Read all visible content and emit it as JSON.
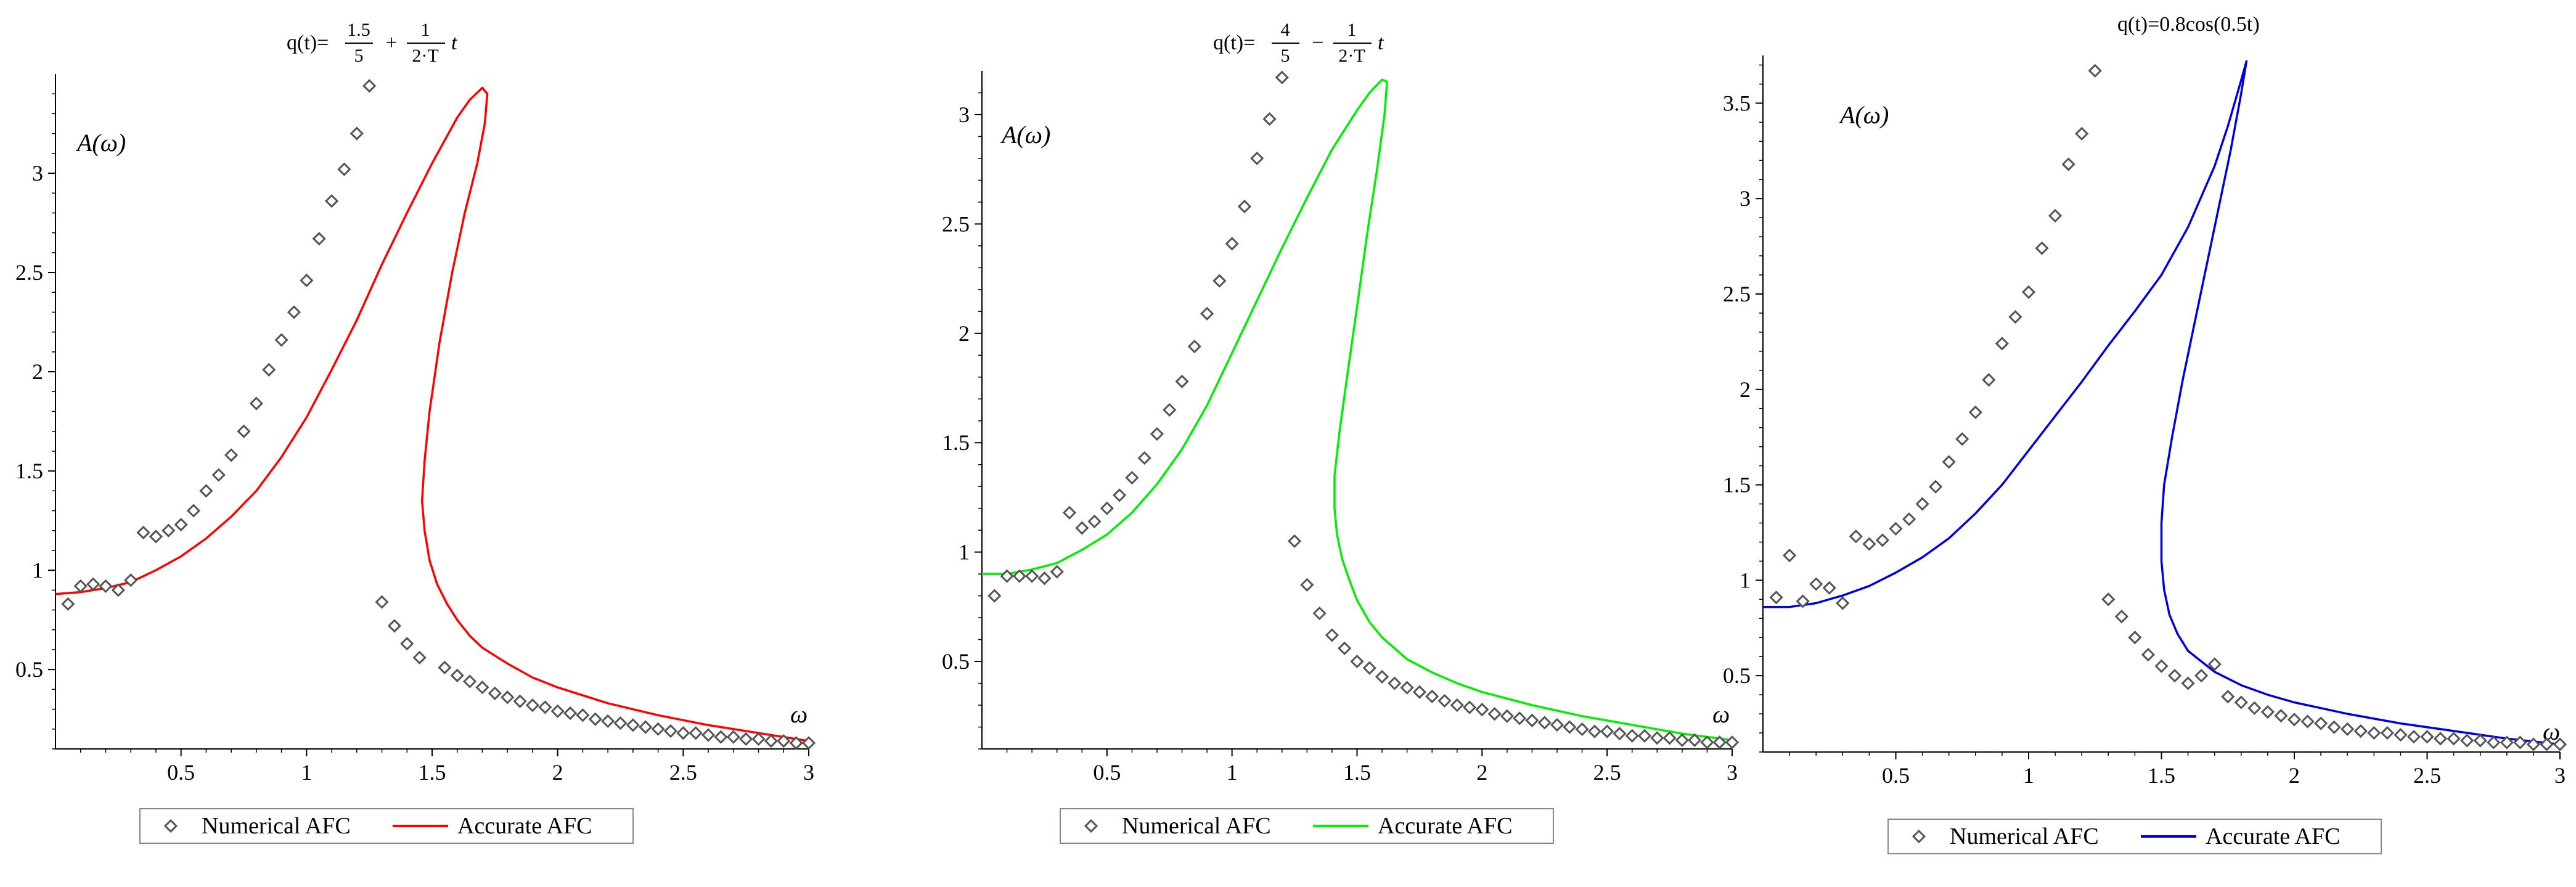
{
  "chart_data": [
    {
      "type": "scatter",
      "title": "q(t)=",
      "title_formula": {
        "f1_num": "1.5",
        "f1_den": "5",
        "op": "+",
        "f2_num": "1",
        "f2_den": "2·T",
        "var": "t"
      },
      "xlabel": "ω",
      "ylabel": "A(ω)",
      "xlim": [
        0,
        3
      ],
      "ylim": [
        0.1,
        3.5
      ],
      "xticks": [
        "0.5",
        "1",
        "1.5",
        "2",
        "2.5",
        "3"
      ],
      "yticks": [
        "0.5",
        "1",
        "1.5",
        "2",
        "2.5",
        "3"
      ],
      "grid": false,
      "legend_position": "bottom",
      "accurate_color": "#ff0000",
      "marker_color": "#555555",
      "series": [
        {
          "name": "Numerical AFC",
          "marker": "diamond",
          "x": [
            0.05,
            0.1,
            0.15,
            0.2,
            0.25,
            0.3,
            0.35,
            0.4,
            0.45,
            0.5,
            0.55,
            0.6,
            0.65,
            0.7,
            0.75,
            0.8,
            0.85,
            0.9,
            0.95,
            1.0,
            1.05,
            1.1,
            1.15,
            1.2,
            1.25,
            1.3,
            1.35,
            1.4,
            1.45,
            1.55,
            1.6,
            1.65,
            1.7,
            1.75,
            1.8,
            1.85,
            1.9,
            1.95,
            2.0,
            2.05,
            2.1,
            2.15,
            2.2,
            2.25,
            2.3,
            2.35,
            2.4,
            2.45,
            2.5,
            2.55,
            2.6,
            2.65,
            2.7,
            2.75,
            2.8,
            2.85,
            2.9,
            2.95,
            3.0
          ],
          "y": [
            0.83,
            0.92,
            0.93,
            0.92,
            0.9,
            0.95,
            1.19,
            1.17,
            1.2,
            1.23,
            1.3,
            1.4,
            1.48,
            1.58,
            1.7,
            1.84,
            2.01,
            2.16,
            2.3,
            2.46,
            2.67,
            2.86,
            3.02,
            3.2,
            3.44,
            0.84,
            0.72,
            0.63,
            0.56,
            0.51,
            0.47,
            0.44,
            0.41,
            0.38,
            0.36,
            0.34,
            0.32,
            0.31,
            0.29,
            0.28,
            0.27,
            0.25,
            0.24,
            0.23,
            0.22,
            0.21,
            0.2,
            0.19,
            0.18,
            0.18,
            0.17,
            0.16,
            0.16,
            0.15,
            0.15,
            0.14,
            0.14,
            0.13,
            0.13
          ]
        },
        {
          "name": "Accurate AFC",
          "line": true,
          "x": [
            0.0,
            0.1,
            0.2,
            0.3,
            0.4,
            0.5,
            0.6,
            0.7,
            0.8,
            0.9,
            1.0,
            1.1,
            1.2,
            1.3,
            1.4,
            1.5,
            1.6,
            1.65,
            1.7,
            1.72,
            1.71,
            1.68,
            1.63,
            1.58,
            1.53,
            1.49,
            1.47,
            1.46,
            1.47,
            1.49,
            1.52,
            1.56,
            1.6,
            1.65,
            1.7,
            1.8,
            1.9,
            2.0,
            2.2,
            2.4,
            2.6,
            2.8,
            3.0
          ],
          "y": [
            0.88,
            0.89,
            0.91,
            0.94,
            1.0,
            1.07,
            1.16,
            1.27,
            1.4,
            1.57,
            1.77,
            2.01,
            2.26,
            2.54,
            2.8,
            3.05,
            3.28,
            3.37,
            3.43,
            3.4,
            3.25,
            3.05,
            2.8,
            2.5,
            2.15,
            1.8,
            1.55,
            1.35,
            1.2,
            1.05,
            0.93,
            0.83,
            0.75,
            0.67,
            0.61,
            0.53,
            0.46,
            0.41,
            0.33,
            0.27,
            0.22,
            0.18,
            0.14
          ]
        }
      ]
    },
    {
      "type": "scatter",
      "title": "q(t)=",
      "title_formula": {
        "f1_num": "4",
        "f1_den": "5",
        "op": "−",
        "f2_num": "1",
        "f2_den": "2·T",
        "var": "t"
      },
      "xlabel": "ω",
      "ylabel": "A(ω)",
      "xlim": [
        0,
        3
      ],
      "ylim": [
        0.1,
        3.2
      ],
      "xticks": [
        "0.5",
        "1",
        "1.5",
        "2",
        "2.5",
        "3"
      ],
      "yticks": [
        "0.5",
        "1",
        "1.5",
        "2",
        "2.5",
        "3"
      ],
      "grid": false,
      "legend_position": "bottom",
      "accurate_color": "#00ee00",
      "marker_color": "#555555",
      "series": [
        {
          "name": "Numerical AFC",
          "marker": "diamond",
          "x": [
            0.05,
            0.1,
            0.15,
            0.2,
            0.25,
            0.3,
            0.35,
            0.4,
            0.45,
            0.5,
            0.55,
            0.6,
            0.65,
            0.7,
            0.75,
            0.8,
            0.85,
            0.9,
            0.95,
            1.0,
            1.05,
            1.1,
            1.15,
            1.2,
            1.25,
            1.3,
            1.35,
            1.4,
            1.45,
            1.5,
            1.55,
            1.6,
            1.65,
            1.7,
            1.75,
            1.8,
            1.85,
            1.9,
            1.95,
            2.0,
            2.05,
            2.1,
            2.15,
            2.2,
            2.25,
            2.3,
            2.35,
            2.4,
            2.45,
            2.5,
            2.55,
            2.6,
            2.65,
            2.7,
            2.75,
            2.8,
            2.85,
            2.9,
            2.95,
            3.0
          ],
          "y": [
            0.8,
            0.89,
            0.89,
            0.89,
            0.88,
            0.91,
            1.18,
            1.11,
            1.14,
            1.2,
            1.26,
            1.34,
            1.43,
            1.54,
            1.65,
            1.78,
            1.94,
            2.09,
            2.24,
            2.41,
            2.58,
            2.8,
            2.98,
            3.17,
            1.05,
            0.85,
            0.72,
            0.62,
            0.56,
            0.5,
            0.47,
            0.43,
            0.4,
            0.38,
            0.36,
            0.34,
            0.32,
            0.3,
            0.29,
            0.28,
            0.26,
            0.25,
            0.24,
            0.23,
            0.22,
            0.21,
            0.2,
            0.19,
            0.18,
            0.18,
            0.17,
            0.16,
            0.16,
            0.15,
            0.15,
            0.14,
            0.14,
            0.13,
            0.13,
            0.13
          ]
        },
        {
          "name": "Accurate AFC",
          "line": true,
          "x": [
            0.0,
            0.1,
            0.2,
            0.3,
            0.4,
            0.5,
            0.6,
            0.7,
            0.8,
            0.9,
            1.0,
            1.1,
            1.2,
            1.3,
            1.4,
            1.5,
            1.55,
            1.6,
            1.62,
            1.61,
            1.58,
            1.54,
            1.5,
            1.46,
            1.43,
            1.41,
            1.41,
            1.42,
            1.44,
            1.47,
            1.5,
            1.55,
            1.6,
            1.7,
            1.8,
            1.9,
            2.0,
            2.2,
            2.4,
            2.6,
            2.8,
            3.0
          ],
          "y": [
            0.9,
            0.9,
            0.92,
            0.95,
            1.01,
            1.08,
            1.18,
            1.31,
            1.47,
            1.67,
            1.91,
            2.15,
            2.39,
            2.62,
            2.84,
            3.02,
            3.1,
            3.16,
            3.15,
            3.0,
            2.75,
            2.45,
            2.12,
            1.8,
            1.55,
            1.35,
            1.2,
            1.08,
            0.97,
            0.87,
            0.78,
            0.68,
            0.61,
            0.51,
            0.45,
            0.4,
            0.36,
            0.3,
            0.25,
            0.21,
            0.17,
            0.14
          ]
        }
      ]
    },
    {
      "type": "scatter",
      "title": "q(t)=0.8cos(0.5t)",
      "xlabel": "ω",
      "ylabel": "A(ω)",
      "xlim": [
        0,
        3
      ],
      "ylim": [
        0.1,
        3.75
      ],
      "xticks": [
        "0.5",
        "1",
        "1.5",
        "2",
        "2.5",
        "3"
      ],
      "yticks": [
        "0.5",
        "1",
        "1.5",
        "2",
        "2.5",
        "3",
        "3.5"
      ],
      "grid": false,
      "legend_position": "bottom",
      "accurate_color": "#0000dd",
      "marker_color": "#555555",
      "series": [
        {
          "name": "Numerical AFC",
          "marker": "diamond",
          "x": [
            0.05,
            0.1,
            0.15,
            0.2,
            0.25,
            0.3,
            0.35,
            0.4,
            0.45,
            0.5,
            0.55,
            0.6,
            0.65,
            0.7,
            0.75,
            0.8,
            0.85,
            0.9,
            0.95,
            1.0,
            1.05,
            1.1,
            1.15,
            1.2,
            1.25,
            1.3,
            1.35,
            1.4,
            1.45,
            1.5,
            1.55,
            1.6,
            1.65,
            1.7,
            1.75,
            1.8,
            1.85,
            1.9,
            1.95,
            2.0,
            2.05,
            2.1,
            2.15,
            2.2,
            2.25,
            2.3,
            2.35,
            2.4,
            2.45,
            2.5,
            2.55,
            2.6,
            2.65,
            2.7,
            2.75,
            2.8,
            2.85,
            2.9,
            2.95,
            3.0
          ],
          "y": [
            0.91,
            1.13,
            0.89,
            0.98,
            0.96,
            0.88,
            1.23,
            1.19,
            1.21,
            1.27,
            1.32,
            1.4,
            1.49,
            1.62,
            1.74,
            1.88,
            2.05,
            2.24,
            2.38,
            2.51,
            2.74,
            2.91,
            3.18,
            3.34,
            3.67,
            0.9,
            0.81,
            0.7,
            0.61,
            0.55,
            0.5,
            0.46,
            0.5,
            0.56,
            0.39,
            0.36,
            0.33,
            0.31,
            0.29,
            0.27,
            0.26,
            0.25,
            0.23,
            0.22,
            0.21,
            0.2,
            0.2,
            0.19,
            0.18,
            0.18,
            0.17,
            0.17,
            0.16,
            0.16,
            0.15,
            0.15,
            0.15,
            0.14,
            0.14,
            0.14
          ]
        },
        {
          "name": "Accurate AFC",
          "line": true,
          "x": [
            0.0,
            0.1,
            0.2,
            0.3,
            0.4,
            0.5,
            0.6,
            0.7,
            0.8,
            0.9,
            1.0,
            1.1,
            1.2,
            1.3,
            1.4,
            1.5,
            1.6,
            1.7,
            1.75,
            1.8,
            1.82,
            1.8,
            1.76,
            1.7,
            1.64,
            1.58,
            1.54,
            1.51,
            1.5,
            1.5,
            1.51,
            1.53,
            1.56,
            1.6,
            1.7,
            1.8,
            1.9,
            2.0,
            2.2,
            2.4,
            2.6,
            2.8,
            3.0
          ],
          "y": [
            0.86,
            0.86,
            0.88,
            0.92,
            0.97,
            1.04,
            1.12,
            1.22,
            1.35,
            1.5,
            1.68,
            1.86,
            2.04,
            2.23,
            2.41,
            2.6,
            2.85,
            3.17,
            3.38,
            3.62,
            3.72,
            3.55,
            3.25,
            2.85,
            2.45,
            2.05,
            1.75,
            1.5,
            1.3,
            1.1,
            0.95,
            0.82,
            0.72,
            0.63,
            0.52,
            0.45,
            0.4,
            0.36,
            0.3,
            0.25,
            0.21,
            0.17,
            0.14
          ]
        }
      ]
    }
  ]
}
